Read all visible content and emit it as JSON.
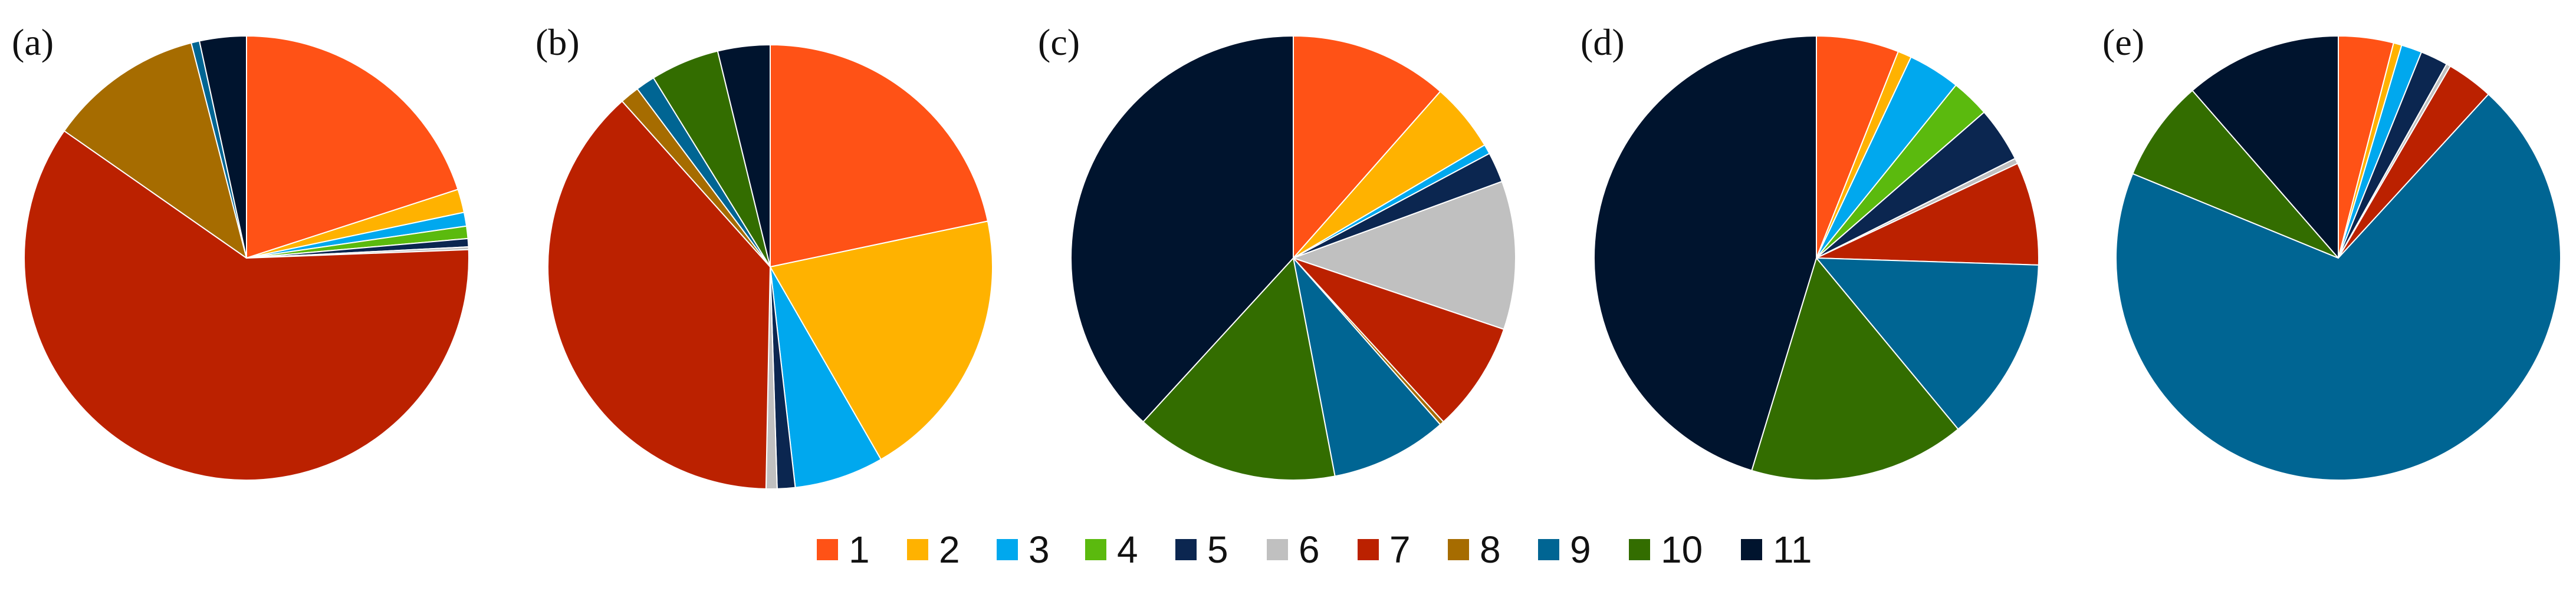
{
  "chart_data": {
    "type": "pie",
    "legend_position": "bottom",
    "categories": [
      "1",
      "2",
      "3",
      "4",
      "5",
      "6",
      "7",
      "8",
      "9",
      "10",
      "11"
    ],
    "colors": [
      "#ff5216",
      "#ffb200",
      "#00a8ee",
      "#5bba0e",
      "#0b2650",
      "#c0c0c0",
      "#bb2100",
      "#a66c00",
      "#006593",
      "#336d00",
      "#00142e"
    ],
    "panels": [
      {
        "label": "(a)",
        "values": [
          20.0,
          1.7,
          1.0,
          0.9,
          0.6,
          0.2,
          60.3,
          11.3,
          0.6,
          0.0,
          3.4
        ]
      },
      {
        "label": "(b)",
        "values": [
          21.7,
          20.0,
          6.5,
          0.0,
          1.3,
          0.8,
          38.1,
          1.4,
          1.4,
          5.0,
          3.8
        ]
      },
      {
        "label": "(c)",
        "values": [
          11.5,
          5.0,
          0.7,
          0.0,
          2.2,
          10.8,
          8.0,
          0.3,
          8.5,
          14.8,
          38.2
        ]
      },
      {
        "label": "(d)",
        "values": [
          6.0,
          1.0,
          3.8,
          2.8,
          4.0,
          0.4,
          7.5,
          0.0,
          13.5,
          15.7,
          45.3
        ]
      },
      {
        "label": "(e)",
        "values": [
          4.0,
          0.6,
          1.5,
          0.0,
          2.0,
          0.3,
          3.4,
          0.0,
          69.4,
          7.4,
          11.4
        ]
      }
    ]
  }
}
